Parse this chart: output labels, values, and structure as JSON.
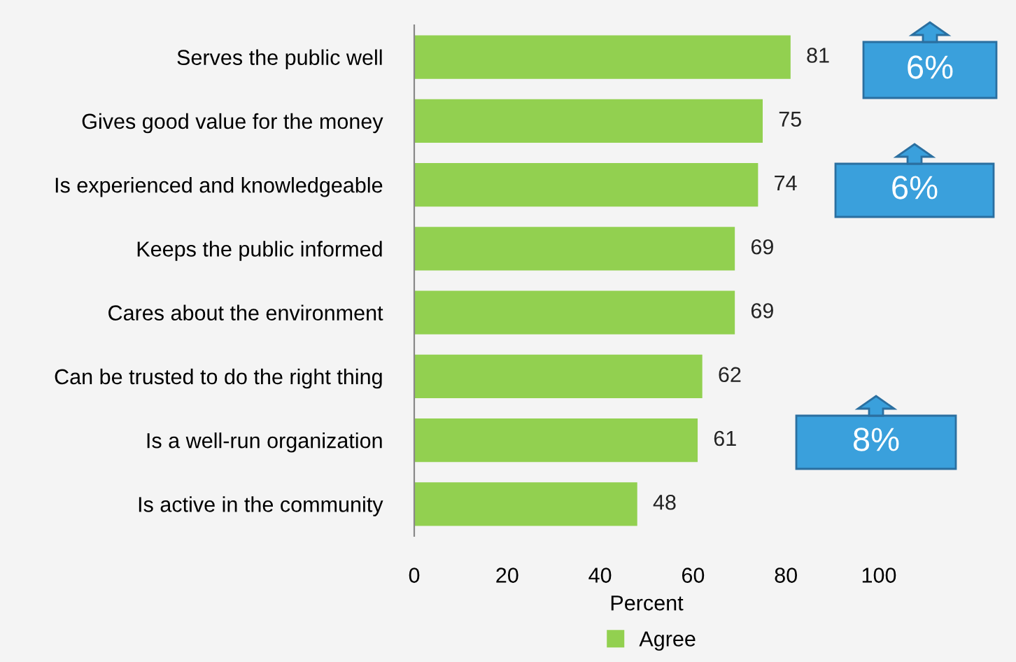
{
  "chart_data": {
    "type": "bar",
    "orientation": "horizontal",
    "categories": [
      "Serves the public well",
      "Gives good value for the money",
      "Is experienced and knowledgeable",
      "Keeps the public informed",
      "Cares about the environment",
      "Can be trusted to do the right thing",
      "Is a well-run organization",
      "Is active in the community"
    ],
    "series": [
      {
        "name": "Agree",
        "color": "#92d050",
        "values": [
          81,
          75,
          74,
          69,
          69,
          62,
          61,
          48
        ]
      }
    ],
    "xlim": [
      0,
      100
    ],
    "xticks": [
      0,
      20,
      40,
      60,
      80,
      100
    ],
    "xlabel": "Percent",
    "data_labels": true,
    "grid": false,
    "legend": "bottom",
    "annotations": [
      "6%",
      "6%",
      "8%"
    ]
  }
}
